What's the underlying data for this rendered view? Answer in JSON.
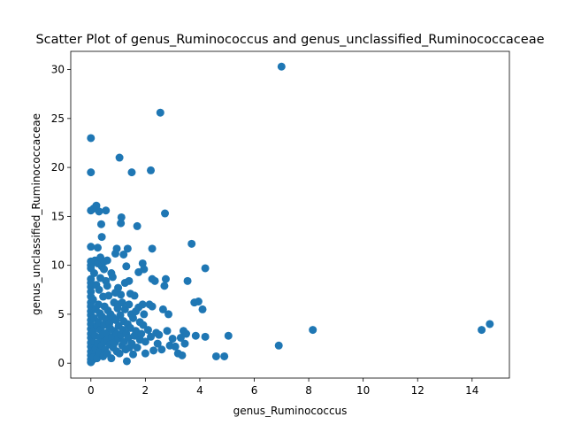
{
  "chart_data": {
    "type": "scatter",
    "title": "Scatter Plot of genus_Ruminococcus and genus_unclassified_Ruminococcaceae",
    "xlabel": "genus_Ruminococcus",
    "ylabel": "genus_unclassified_Ruminococcaceae",
    "xlim": [
      -0.74,
      15.37
    ],
    "ylim": [
      -1.52,
      31.86
    ],
    "xticks": [
      0,
      2,
      4,
      6,
      8,
      10,
      12,
      14
    ],
    "yticks": [
      0,
      5,
      10,
      15,
      20,
      25,
      30
    ],
    "grid": false,
    "legend": "none",
    "marker_color": "#1f77b4",
    "points": [
      [
        0,
        23.0
      ],
      [
        0,
        19.5
      ],
      [
        0,
        15.6
      ],
      [
        0,
        11.9
      ],
      [
        0,
        10.4
      ],
      [
        0,
        10.0
      ],
      [
        0,
        9.7
      ],
      [
        0,
        8.6
      ],
      [
        0,
        8.2
      ],
      [
        0,
        7.8
      ],
      [
        0,
        7.3
      ],
      [
        0,
        6.8
      ],
      [
        0,
        6.2
      ],
      [
        0,
        5.8
      ],
      [
        0,
        5.3
      ],
      [
        0,
        4.9
      ],
      [
        0,
        4.4
      ],
      [
        0,
        4.0
      ],
      [
        0,
        3.5
      ],
      [
        0,
        3.0
      ],
      [
        0,
        2.6
      ],
      [
        0,
        2.1
      ],
      [
        0,
        1.7
      ],
      [
        0,
        1.2
      ],
      [
        0,
        0.8
      ],
      [
        0,
        0.4
      ],
      [
        0,
        0.1
      ],
      [
        0.05,
        0.3
      ],
      [
        0.05,
        1.0
      ],
      [
        0.05,
        2.3
      ],
      [
        0.08,
        3.2
      ],
      [
        0.08,
        6.5
      ],
      [
        0.1,
        15.8
      ],
      [
        0.1,
        0.6
      ],
      [
        0.12,
        4.6
      ],
      [
        0.12,
        9.2
      ],
      [
        0.15,
        10.5
      ],
      [
        0.15,
        2.8
      ],
      [
        0.18,
        1.5
      ],
      [
        0.18,
        5.5
      ],
      [
        0.2,
        16.1
      ],
      [
        0.2,
        8.0
      ],
      [
        0.22,
        0.5
      ],
      [
        0.22,
        3.8
      ],
      [
        0.25,
        11.8
      ],
      [
        0.25,
        10.2
      ],
      [
        0.25,
        2.0
      ],
      [
        0.28,
        6.0
      ],
      [
        0.28,
        4.2
      ],
      [
        0.3,
        15.5
      ],
      [
        0.3,
        7.5
      ],
      [
        0.3,
        1.1
      ],
      [
        0.33,
        2.6
      ],
      [
        0.33,
        5.1
      ],
      [
        0.35,
        10.8
      ],
      [
        0.35,
        8.7
      ],
      [
        0.35,
        3.4
      ],
      [
        0.38,
        14.2
      ],
      [
        0.4,
        12.9
      ],
      [
        0.4,
        9.9
      ],
      [
        0.4,
        1.8
      ],
      [
        0.4,
        4.8
      ],
      [
        0.42,
        2.9
      ],
      [
        0.45,
        6.8
      ],
      [
        0.45,
        0.7
      ],
      [
        0.48,
        9.6
      ],
      [
        0.48,
        3.9
      ],
      [
        0.5,
        10.4
      ],
      [
        0.5,
        5.8
      ],
      [
        0.5,
        2.2
      ],
      [
        0.52,
        1.4
      ],
      [
        0.55,
        15.6
      ],
      [
        0.55,
        8.4
      ],
      [
        0.55,
        4.5
      ],
      [
        0.58,
        3.1
      ],
      [
        0.6,
        10.5
      ],
      [
        0.6,
        7.9
      ],
      [
        0.6,
        1.0
      ],
      [
        0.62,
        5.4
      ],
      [
        0.62,
        2.4
      ],
      [
        0.65,
        6.9
      ],
      [
        0.68,
        4.1
      ],
      [
        0.7,
        3.6
      ],
      [
        0.7,
        1.9
      ],
      [
        0.72,
        5.0
      ],
      [
        0.75,
        9.2
      ],
      [
        0.75,
        0.5
      ],
      [
        0.78,
        2.7
      ],
      [
        0.8,
        8.8
      ],
      [
        0.8,
        4.7
      ],
      [
        0.82,
        1.6
      ],
      [
        0.85,
        3.3
      ],
      [
        0.85,
        6.2
      ],
      [
        0.88,
        2.1
      ],
      [
        0.9,
        11.2
      ],
      [
        0.9,
        7.2
      ],
      [
        0.92,
        4.4
      ],
      [
        0.95,
        11.7
      ],
      [
        0.95,
        3.0
      ],
      [
        0.95,
        1.2
      ],
      [
        0.98,
        5.6
      ],
      [
        1.0,
        7.7
      ],
      [
        1.0,
        2.5
      ],
      [
        1.0,
        6.0
      ],
      [
        1.02,
        3.8
      ],
      [
        1.05,
        21.0
      ],
      [
        1.05,
        1.0
      ],
      [
        1.08,
        4.9
      ],
      [
        1.1,
        14.3
      ],
      [
        1.1,
        7.0
      ],
      [
        1.1,
        2.9
      ],
      [
        1.12,
        14.9
      ],
      [
        1.15,
        6.2
      ],
      [
        1.15,
        1.8
      ],
      [
        1.18,
        3.4
      ],
      [
        1.2,
        11.1
      ],
      [
        1.2,
        4.3
      ],
      [
        1.22,
        2.2
      ],
      [
        1.25,
        8.2
      ],
      [
        1.25,
        5.5
      ],
      [
        1.28,
        1.4
      ],
      [
        1.3,
        9.9
      ],
      [
        1.3,
        3.0
      ],
      [
        1.32,
        0.2
      ],
      [
        1.35,
        11.7
      ],
      [
        1.35,
        4.0
      ],
      [
        1.38,
        2.6
      ],
      [
        1.4,
        8.4
      ],
      [
        1.4,
        6.0
      ],
      [
        1.42,
        1.6
      ],
      [
        1.45,
        7.1
      ],
      [
        1.45,
        3.6
      ],
      [
        1.48,
        5.0
      ],
      [
        1.5,
        19.5
      ],
      [
        1.5,
        2.0
      ],
      [
        1.55,
        4.6
      ],
      [
        1.55,
        0.9
      ],
      [
        1.6,
        6.9
      ],
      [
        1.6,
        2.8
      ],
      [
        1.65,
        5.3
      ],
      [
        1.65,
        3.3
      ],
      [
        1.7,
        14.0
      ],
      [
        1.7,
        1.6
      ],
      [
        1.75,
        9.3
      ],
      [
        1.75,
        5.7
      ],
      [
        1.8,
        4.2
      ],
      [
        1.8,
        2.4
      ],
      [
        1.85,
        3.0
      ],
      [
        1.9,
        10.2
      ],
      [
        1.9,
        6.0
      ],
      [
        1.92,
        3.9
      ],
      [
        1.95,
        9.6
      ],
      [
        1.95,
        5.0
      ],
      [
        2.0,
        2.2
      ],
      [
        2.0,
        1.0
      ],
      [
        2.1,
        3.4
      ],
      [
        2.15,
        6.0
      ],
      [
        2.2,
        19.7
      ],
      [
        2.2,
        2.7
      ],
      [
        2.25,
        11.7
      ],
      [
        2.25,
        5.8
      ],
      [
        2.25,
        8.6
      ],
      [
        2.3,
        1.3
      ],
      [
        2.35,
        8.4
      ],
      [
        2.4,
        3.1
      ],
      [
        2.45,
        2.0
      ],
      [
        2.5,
        2.9
      ],
      [
        2.55,
        25.6
      ],
      [
        2.6,
        1.4
      ],
      [
        2.65,
        5.5
      ],
      [
        2.7,
        7.9
      ],
      [
        2.72,
        15.3
      ],
      [
        2.75,
        8.6
      ],
      [
        2.8,
        3.3
      ],
      [
        2.85,
        5.0
      ],
      [
        2.9,
        1.8
      ],
      [
        3.0,
        2.5
      ],
      [
        3.1,
        1.7
      ],
      [
        3.2,
        1.0
      ],
      [
        3.3,
        2.6
      ],
      [
        3.35,
        0.8
      ],
      [
        3.4,
        3.3
      ],
      [
        3.45,
        2.0
      ],
      [
        3.5,
        3.0
      ],
      [
        3.55,
        8.4
      ],
      [
        3.7,
        12.2
      ],
      [
        3.8,
        6.2
      ],
      [
        3.85,
        2.8
      ],
      [
        3.95,
        6.3
      ],
      [
        4.1,
        5.5
      ],
      [
        4.2,
        9.7
      ],
      [
        4.2,
        2.7
      ],
      [
        4.6,
        0.7
      ],
      [
        4.9,
        0.7
      ],
      [
        5.05,
        2.8
      ],
      [
        6.9,
        1.8
      ],
      [
        7.0,
        30.3
      ],
      [
        8.15,
        3.4
      ],
      [
        14.35,
        3.4
      ],
      [
        14.65,
        4.0
      ]
    ]
  }
}
